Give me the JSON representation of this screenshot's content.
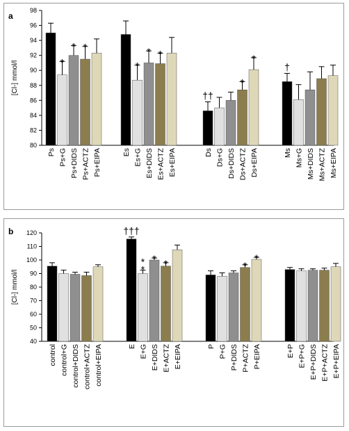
{
  "chart_data": [
    {
      "type": "bar",
      "panel_label": "a",
      "ylabel": "[Cl-] mmol/l",
      "ylim": [
        80,
        98
      ],
      "yticks": [
        80,
        82,
        84,
        86,
        88,
        90,
        92,
        94,
        96,
        98
      ],
      "grid": false,
      "groups": [
        {
          "bars": [
            {
              "label": "Ps",
              "value": 95.0,
              "error": 1.3,
              "mark": ""
            },
            {
              "label": "Ps+G",
              "value": 89.4,
              "error": 1.8,
              "mark": "*"
            },
            {
              "label": "Ps+DIDS",
              "value": 92.0,
              "error": 1.3,
              "mark": "*"
            },
            {
              "label": "Ps+ACTZ",
              "value": 91.5,
              "error": 1.7,
              "mark": "*"
            },
            {
              "label": "Ps+EIPA",
              "value": 92.3,
              "error": 1.9,
              "mark": ""
            }
          ]
        },
        {
          "bars": [
            {
              "label": "Es",
              "value": 94.8,
              "error": 1.8,
              "mark": ""
            },
            {
              "label": "Es+G",
              "value": 88.7,
              "error": 2.0,
              "mark": "*"
            },
            {
              "label": "Es+DIDS",
              "value": 91.0,
              "error": 1.6,
              "mark": "*"
            },
            {
              "label": "Es+ACTZ",
              "value": 90.9,
              "error": 1.4,
              "mark": "*"
            },
            {
              "label": "Es+EIPA",
              "value": 92.3,
              "error": 2.1,
              "mark": ""
            }
          ]
        },
        {
          "bars": [
            {
              "label": "Ds",
              "value": 84.6,
              "error": 1.2,
              "mark": "††"
            },
            {
              "label": "Ds+G",
              "value": 85.0,
              "error": 1.4,
              "mark": ""
            },
            {
              "label": "Ds+DIDS",
              "value": 86.0,
              "error": 1.1,
              "mark": ""
            },
            {
              "label": "Ds+ACTZ",
              "value": 87.4,
              "error": 1.1,
              "mark": "*"
            },
            {
              "label": "Ds+EIPA",
              "value": 90.1,
              "error": 1.6,
              "mark": "*"
            }
          ]
        },
        {
          "bars": [
            {
              "label": "Ms",
              "value": 88.5,
              "error": 1.1,
              "mark": "†"
            },
            {
              "label": "Ms+G",
              "value": 86.1,
              "error": 2.0,
              "mark": ""
            },
            {
              "label": "Ms+DIDS",
              "value": 87.4,
              "error": 2.4,
              "mark": ""
            },
            {
              "label": "Ms+ACTZ",
              "value": 88.9,
              "error": 1.6,
              "mark": ""
            },
            {
              "label": "Ms+EIPA",
              "value": 89.3,
              "error": 1.4,
              "mark": ""
            }
          ]
        }
      ]
    },
    {
      "type": "bar",
      "panel_label": "b",
      "ylabel": "[Cl-] mmol/l",
      "ylim": [
        40,
        120
      ],
      "yticks": [
        40,
        50,
        60,
        70,
        80,
        90,
        100,
        110,
        120
      ],
      "grid": false,
      "groups": [
        {
          "bars": [
            {
              "label": "control",
              "value": 95.5,
              "error": 2.5,
              "mark": ""
            },
            {
              "label": "control+G",
              "value": 90.0,
              "error": 2.5,
              "mark": ""
            },
            {
              "label": "control+DIDS",
              "value": 89.5,
              "error": 1.5,
              "mark": ""
            },
            {
              "label": "control+ACTZ",
              "value": 88.5,
              "error": 2.5,
              "mark": ""
            },
            {
              "label": "control+EIPA",
              "value": 95.0,
              "error": 1.5,
              "mark": ""
            }
          ]
        },
        {
          "bars": [
            {
              "label": "E",
              "value": 115.5,
              "error": 1.5,
              "mark": "†††"
            },
            {
              "label": "E+G",
              "value": 90.0,
              "error": 2.5,
              "mark": "**"
            },
            {
              "label": "E+DIDS",
              "value": 100.0,
              "error": 1.5,
              "mark": "*"
            },
            {
              "label": "E+ACTZ",
              "value": 95.5,
              "error": 2.5,
              "mark": "*"
            },
            {
              "label": "E+EIPA",
              "value": 107.5,
              "error": 3.5,
              "mark": ""
            }
          ]
        },
        {
          "bars": [
            {
              "label": "P",
              "value": 89.0,
              "error": 3.0,
              "mark": ""
            },
            {
              "label": "P+G",
              "value": 88.0,
              "error": 2.5,
              "mark": ""
            },
            {
              "label": "P+DIDS",
              "value": 90.5,
              "error": 1.5,
              "mark": ""
            },
            {
              "label": "P+ACTZ",
              "value": 94.5,
              "error": 2.0,
              "mark": "*"
            },
            {
              "label": "P+EIPA",
              "value": 100.5,
              "error": 1.5,
              "mark": "*"
            }
          ]
        },
        {
          "bars": [
            {
              "label": "E+P",
              "value": 93.0,
              "error": 1.5,
              "mark": ""
            },
            {
              "label": "E+P+G",
              "value": 92.0,
              "error": 1.5,
              "mark": ""
            },
            {
              "label": "E+P+DIDS",
              "value": 92.5,
              "error": 1.0,
              "mark": ""
            },
            {
              "label": "E+P+ACTZ",
              "value": 92.5,
              "error": 1.5,
              "mark": ""
            },
            {
              "label": "E+P+EIPA",
              "value": 95.0,
              "error": 2.5,
              "mark": ""
            }
          ]
        }
      ]
    }
  ],
  "colors": [
    "#000000",
    "#e0e0e0",
    "#8f8f8f",
    "#8c7d4e",
    "#ded8b8"
  ]
}
